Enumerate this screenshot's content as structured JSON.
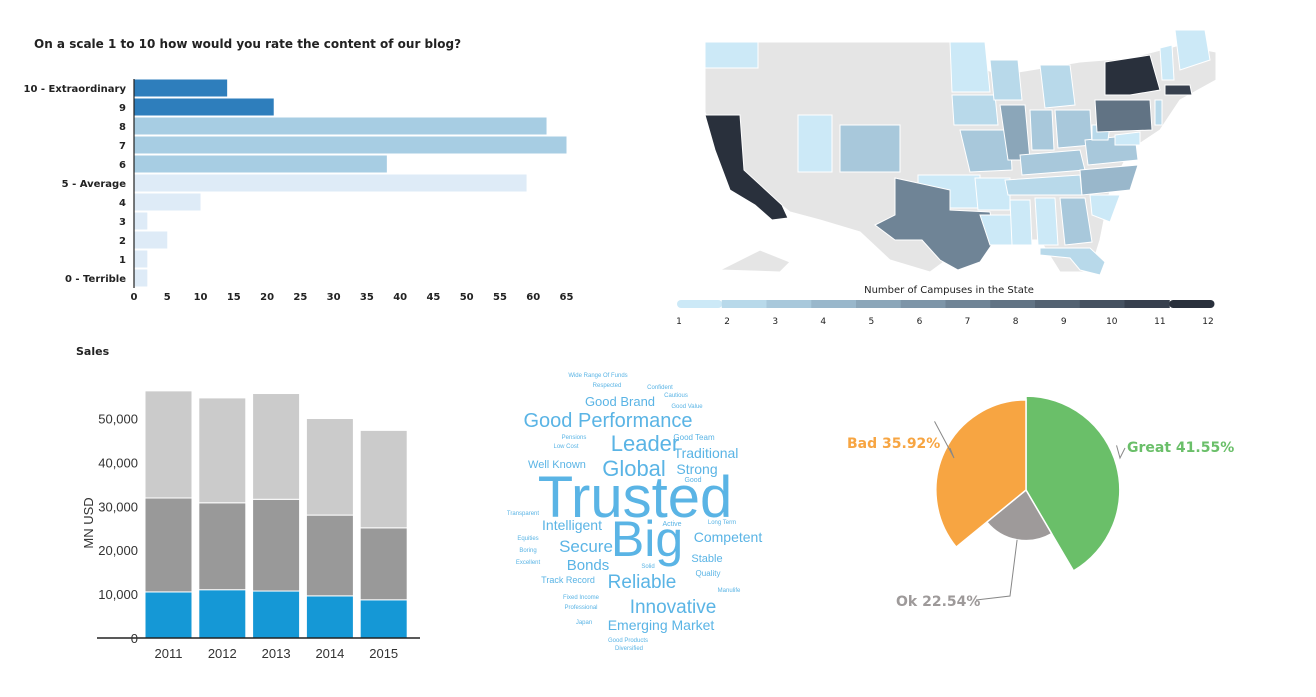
{
  "ratings_chart": {
    "title": "On a scale 1 to 10 how would you rate the content of our blog?",
    "chart_data": {
      "type": "bar",
      "orientation": "horizontal",
      "categories": [
        "10 - Extraordinary",
        "9",
        "8",
        "7",
        "6",
        "5 - Average",
        "4",
        "3",
        "2",
        "1",
        "0 - Terrible"
      ],
      "values": [
        14,
        21,
        62,
        65,
        38,
        59,
        10,
        2,
        5,
        2,
        2
      ],
      "xlim": [
        0,
        68
      ],
      "xticks": [
        0,
        5,
        10,
        15,
        20,
        25,
        30,
        35,
        40,
        45,
        50,
        55,
        60,
        65
      ],
      "colors": [
        "#2e7ebc",
        "#2e7ebc",
        "#a7cde3",
        "#a7cde3",
        "#a7cde3",
        "#deebf7",
        "#deebf7",
        "#deebf7",
        "#deebf7",
        "#deebf7",
        "#deebf7"
      ]
    }
  },
  "map_chart": {
    "legend_title": "Number of Campuses in the State",
    "legend_ticks": [
      "1",
      "2",
      "3",
      "4",
      "5",
      "6",
      "7",
      "8",
      "9",
      "10",
      "11",
      "12"
    ],
    "scale_colors": [
      "#cce9f7",
      "#b8d9ea",
      "#a8c8db",
      "#99b7cb",
      "#8ba6b9",
      "#7d95a8",
      "#6f8496",
      "#617384",
      "#536272",
      "#455160",
      "#37404e",
      "#29303c"
    ],
    "no_data_color": "#e5e5e5"
  },
  "sales_chart": {
    "title": "Sales",
    "chart_data": {
      "type": "bar",
      "stacked": true,
      "categories": [
        "2011",
        "2012",
        "2013",
        "2014",
        "2015"
      ],
      "series": [
        {
          "values": [
            10500,
            11000,
            10700,
            9600,
            8700
          ],
          "color": "#1598d6"
        },
        {
          "values": [
            21400,
            19800,
            20900,
            18400,
            16400
          ],
          "color": "#999999"
        },
        {
          "values": [
            24400,
            23900,
            24100,
            22000,
            22200
          ],
          "color": "#cbcbcb"
        }
      ],
      "ylabel": "MN USD",
      "ylim": [
        0,
        56500
      ],
      "yticks": [
        0,
        10000,
        20000,
        30000,
        40000,
        50000
      ],
      "ytick_labels": [
        "0",
        "10,000",
        "20,000",
        "30,000",
        "40,000",
        "50,000"
      ]
    }
  },
  "word_cloud": {
    "color": "#5ab4e5",
    "words": [
      {
        "text": "Wide Range Of Funds",
        "size": 6
      },
      {
        "text": "Respected",
        "size": 6
      },
      {
        "text": "Confident",
        "size": 6
      },
      {
        "text": "Cautious",
        "size": 6
      },
      {
        "text": "Good Brand",
        "size": 13
      },
      {
        "text": "Good Value",
        "size": 6
      },
      {
        "text": "Good Performance",
        "size": 20
      },
      {
        "text": "Pensions",
        "size": 6
      },
      {
        "text": "Low Cost",
        "size": 6
      },
      {
        "text": "Leader",
        "size": 22
      },
      {
        "text": "Good Team",
        "size": 8
      },
      {
        "text": "Traditional",
        "size": 14
      },
      {
        "text": "Well Known",
        "size": 11
      },
      {
        "text": "Global",
        "size": 22
      },
      {
        "text": "Strong",
        "size": 14
      },
      {
        "text": "Good",
        "size": 7
      },
      {
        "text": "Trusted",
        "size": 58
      },
      {
        "text": "Transparent",
        "size": 6
      },
      {
        "text": "Intelligent",
        "size": 14
      },
      {
        "text": "Active",
        "size": 7
      },
      {
        "text": "Long Term",
        "size": 6
      },
      {
        "text": "Equities",
        "size": 6
      },
      {
        "text": "Big",
        "size": 50
      },
      {
        "text": "Competent",
        "size": 14
      },
      {
        "text": "Boring",
        "size": 6
      },
      {
        "text": "Secure",
        "size": 17
      },
      {
        "text": "Excellent",
        "size": 6
      },
      {
        "text": "Solid",
        "size": 6
      },
      {
        "text": "Stable",
        "size": 11
      },
      {
        "text": "Bonds",
        "size": 15
      },
      {
        "text": "Track Record",
        "size": 9
      },
      {
        "text": "Reliable",
        "size": 19
      },
      {
        "text": "Quality",
        "size": 8
      },
      {
        "text": "Manulife",
        "size": 6
      },
      {
        "text": "Fixed Income",
        "size": 6
      },
      {
        "text": "Professional",
        "size": 6
      },
      {
        "text": "Innovative",
        "size": 19
      },
      {
        "text": "Japan",
        "size": 6
      },
      {
        "text": "Emerging Market",
        "size": 14
      },
      {
        "text": "Good Products",
        "size": 6
      },
      {
        "text": "Diversified",
        "size": 6
      }
    ]
  },
  "pie_chart": {
    "chart_data": {
      "type": "pie",
      "slices": [
        {
          "label": "Great 41.55%",
          "value": 41.55,
          "color": "#6abf69"
        },
        {
          "label": "Ok 22.54%",
          "value": 22.54,
          "color": "#9e9a9a"
        },
        {
          "label": "Bad 35.92%",
          "value": 35.92,
          "color": "#f7a542"
        }
      ]
    }
  }
}
